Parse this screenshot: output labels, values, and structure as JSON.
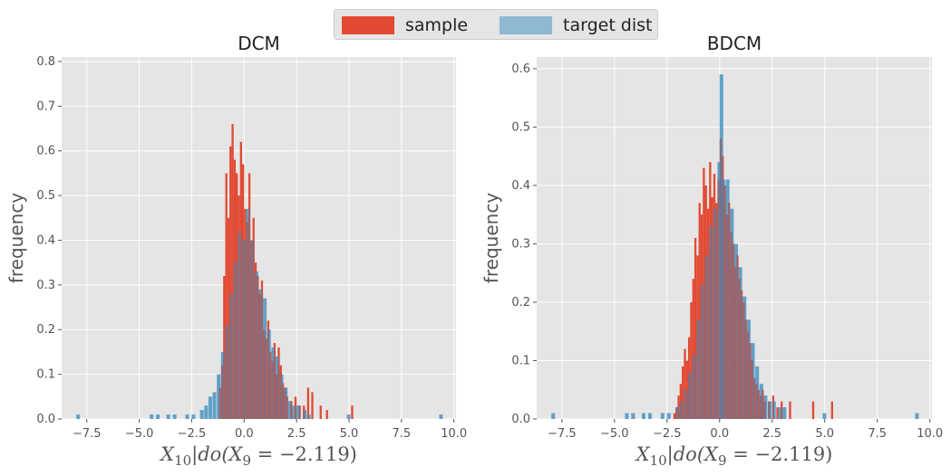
{
  "legend": {
    "items": [
      {
        "label": "sample",
        "color": "#e24a33"
      },
      {
        "label": "target dist",
        "color": "#348abd"
      }
    ]
  },
  "chart_data": [
    {
      "type": "histogram",
      "title": "DCM",
      "xlabel": "X_10|do(X_9 = -2.119)",
      "xlabel_main": "X",
      "xlabel_sub1": "10",
      "xlabel_mid": "|do(X",
      "xlabel_sub2": "9",
      "xlabel_end": " = −2.119)",
      "ylabel": "frequency",
      "xlim": [
        -8.7,
        10.1
      ],
      "ylim": [
        0,
        0.81
      ],
      "xticks": [
        -7.5,
        -5.0,
        -2.5,
        0.0,
        2.5,
        5.0,
        7.5,
        10.0
      ],
      "xtick_labels": [
        "−7.5",
        "−5.0",
        "−2.5",
        "0.0",
        "2.5",
        "5.0",
        "7.5",
        "10.0"
      ],
      "yticks": [
        0.0,
        0.1,
        0.2,
        0.3,
        0.4,
        0.5,
        0.6,
        0.7,
        0.8
      ],
      "ytick_labels": [
        "0.0",
        "0.1",
        "0.2",
        "0.3",
        "0.4",
        "0.5",
        "0.6",
        "0.7",
        "0.8"
      ],
      "series": [
        {
          "name": "sample",
          "color": "#e24a33",
          "bin_width": 0.1,
          "bins": [
            [
              -1.2,
              0.07
            ],
            [
              -1.1,
              0.12
            ],
            [
              -1.0,
              0.32
            ],
            [
              -0.9,
              0.55
            ],
            [
              -0.8,
              0.45
            ],
            [
              -0.7,
              0.61
            ],
            [
              -0.6,
              0.66
            ],
            [
              -0.5,
              0.58
            ],
            [
              -0.4,
              0.55
            ],
            [
              -0.3,
              0.5
            ],
            [
              -0.2,
              0.62
            ],
            [
              -0.1,
              0.57
            ],
            [
              0.0,
              0.47
            ],
            [
              0.1,
              0.44
            ],
            [
              0.2,
              0.55
            ],
            [
              0.3,
              0.4
            ],
            [
              0.4,
              0.45
            ],
            [
              0.5,
              0.35
            ],
            [
              0.6,
              0.32
            ],
            [
              0.7,
              0.28
            ],
            [
              0.8,
              0.31
            ],
            [
              0.9,
              0.2
            ],
            [
              1.0,
              0.18
            ],
            [
              1.1,
              0.22
            ],
            [
              1.2,
              0.15
            ],
            [
              1.3,
              0.13
            ],
            [
              1.4,
              0.17
            ],
            [
              1.5,
              0.1
            ],
            [
              1.6,
              0.16
            ],
            [
              1.7,
              0.12
            ],
            [
              1.8,
              0.08
            ],
            [
              1.9,
              0.07
            ],
            [
              2.0,
              0.05
            ],
            [
              2.2,
              0.04
            ],
            [
              2.4,
              0.05
            ],
            [
              2.6,
              0.03
            ],
            [
              2.8,
              0.03
            ],
            [
              3.0,
              0.07
            ],
            [
              3.2,
              0.06
            ],
            [
              3.6,
              0.03
            ],
            [
              3.9,
              0.02
            ],
            [
              5.1,
              0.03
            ]
          ]
        },
        {
          "name": "target dist",
          "color": "#348abd",
          "bin_width": 0.17,
          "bins": [
            [
              -8.0,
              0.01
            ],
            [
              -4.5,
              0.01
            ],
            [
              -4.2,
              0.01
            ],
            [
              -3.7,
              0.01
            ],
            [
              -3.4,
              0.01
            ],
            [
              -2.8,
              0.01
            ],
            [
              -2.5,
              0.01
            ],
            [
              -2.1,
              0.02
            ],
            [
              -1.9,
              0.03
            ],
            [
              -1.7,
              0.05
            ],
            [
              -1.5,
              0.06
            ],
            [
              -1.3,
              0.1
            ],
            [
              -1.1,
              0.15
            ],
            [
              -0.9,
              0.21
            ],
            [
              -0.7,
              0.28
            ],
            [
              -0.5,
              0.35
            ],
            [
              -0.3,
              0.42
            ],
            [
              -0.1,
              0.4
            ],
            [
              0.1,
              0.47
            ],
            [
              0.3,
              0.4
            ],
            [
              0.5,
              0.33
            ],
            [
              0.7,
              0.29
            ],
            [
              0.9,
              0.27
            ],
            [
              1.1,
              0.2
            ],
            [
              1.3,
              0.16
            ],
            [
              1.5,
              0.14
            ],
            [
              1.7,
              0.1
            ],
            [
              1.9,
              0.07
            ],
            [
              2.1,
              0.04
            ],
            [
              2.3,
              0.03
            ],
            [
              2.5,
              0.03
            ],
            [
              2.8,
              0.02
            ],
            [
              3.0,
              0.01
            ],
            [
              4.9,
              0.01
            ],
            [
              9.3,
              0.01
            ]
          ]
        }
      ]
    },
    {
      "type": "histogram",
      "title": "BDCM",
      "xlabel": "X_10|do(X_9 = -2.119)",
      "xlabel_main": "X",
      "xlabel_sub1": "10",
      "xlabel_mid": "|do(X",
      "xlabel_sub2": "9",
      "xlabel_end": " = −2.119)",
      "ylabel": "frequency",
      "xlim": [
        -8.7,
        10.1
      ],
      "ylim": [
        0,
        0.62
      ],
      "xticks": [
        -7.5,
        -5.0,
        -2.5,
        0.0,
        2.5,
        5.0,
        7.5,
        10.0
      ],
      "xtick_labels": [
        "−7.5",
        "−5.0",
        "−2.5",
        "0.0",
        "2.5",
        "5.0",
        "7.5",
        "10.0"
      ],
      "yticks": [
        0.0,
        0.1,
        0.2,
        0.3,
        0.4,
        0.5,
        0.6
      ],
      "ytick_labels": [
        "0.0",
        "0.1",
        "0.2",
        "0.3",
        "0.4",
        "0.5",
        "0.6"
      ],
      "series": [
        {
          "name": "sample",
          "color": "#e24a33",
          "bin_width": 0.1,
          "bins": [
            [
              -2.2,
              0.01
            ],
            [
              -2.1,
              0.02
            ],
            [
              -2.0,
              0.04
            ],
            [
              -1.9,
              0.06
            ],
            [
              -1.8,
              0.09
            ],
            [
              -1.7,
              0.12
            ],
            [
              -1.6,
              0.1
            ],
            [
              -1.5,
              0.14
            ],
            [
              -1.4,
              0.2
            ],
            [
              -1.3,
              0.24
            ],
            [
              -1.2,
              0.31
            ],
            [
              -1.1,
              0.28
            ],
            [
              -1.0,
              0.37
            ],
            [
              -0.9,
              0.35
            ],
            [
              -0.8,
              0.43
            ],
            [
              -0.7,
              0.4
            ],
            [
              -0.6,
              0.36
            ],
            [
              -0.5,
              0.44
            ],
            [
              -0.4,
              0.38
            ],
            [
              -0.3,
              0.42
            ],
            [
              -0.2,
              0.37
            ],
            [
              -0.1,
              0.41
            ],
            [
              0.0,
              0.48
            ],
            [
              0.1,
              0.45
            ],
            [
              0.2,
              0.4
            ],
            [
              0.3,
              0.35
            ],
            [
              0.4,
              0.37
            ],
            [
              0.5,
              0.32
            ],
            [
              0.6,
              0.3
            ],
            [
              0.7,
              0.26
            ],
            [
              0.8,
              0.28
            ],
            [
              0.9,
              0.24
            ],
            [
              1.0,
              0.22
            ],
            [
              1.1,
              0.2
            ],
            [
              1.2,
              0.17
            ],
            [
              1.3,
              0.15
            ],
            [
              1.4,
              0.13
            ],
            [
              1.5,
              0.1
            ],
            [
              1.6,
              0.07
            ],
            [
              1.7,
              0.06
            ],
            [
              1.8,
              0.05
            ],
            [
              1.9,
              0.04
            ],
            [
              2.0,
              0.05
            ],
            [
              2.1,
              0.03
            ],
            [
              2.3,
              0.03
            ],
            [
              2.5,
              0.04
            ],
            [
              2.7,
              0.02
            ],
            [
              2.9,
              0.03
            ],
            [
              3.3,
              0.03
            ],
            [
              4.4,
              0.03
            ],
            [
              5.3,
              0.03
            ]
          ]
        },
        {
          "name": "target dist",
          "color": "#348abd",
          "bin_width": 0.17,
          "bins": [
            [
              -8.0,
              0.01
            ],
            [
              -4.5,
              0.01
            ],
            [
              -4.2,
              0.01
            ],
            [
              -3.7,
              0.01
            ],
            [
              -3.4,
              0.01
            ],
            [
              -2.8,
              0.01
            ],
            [
              -2.5,
              0.01
            ],
            [
              -2.1,
              0.02
            ],
            [
              -1.9,
              0.03
            ],
            [
              -1.7,
              0.05
            ],
            [
              -1.5,
              0.08
            ],
            [
              -1.3,
              0.11
            ],
            [
              -1.1,
              0.17
            ],
            [
              -0.9,
              0.23
            ],
            [
              -0.7,
              0.28
            ],
            [
              -0.5,
              0.33
            ],
            [
              -0.3,
              0.36
            ],
            [
              -0.1,
              0.44
            ],
            [
              0.0,
              0.59
            ],
            [
              0.1,
              0.41
            ],
            [
              0.3,
              0.41
            ],
            [
              0.5,
              0.36
            ],
            [
              0.7,
              0.3
            ],
            [
              0.9,
              0.26
            ],
            [
              1.1,
              0.21
            ],
            [
              1.3,
              0.17
            ],
            [
              1.5,
              0.13
            ],
            [
              1.7,
              0.09
            ],
            [
              1.9,
              0.06
            ],
            [
              2.1,
              0.04
            ],
            [
              2.3,
              0.03
            ],
            [
              2.5,
              0.03
            ],
            [
              2.8,
              0.02
            ],
            [
              3.0,
              0.02
            ],
            [
              4.9,
              0.01
            ],
            [
              9.3,
              0.01
            ]
          ]
        }
      ]
    }
  ]
}
